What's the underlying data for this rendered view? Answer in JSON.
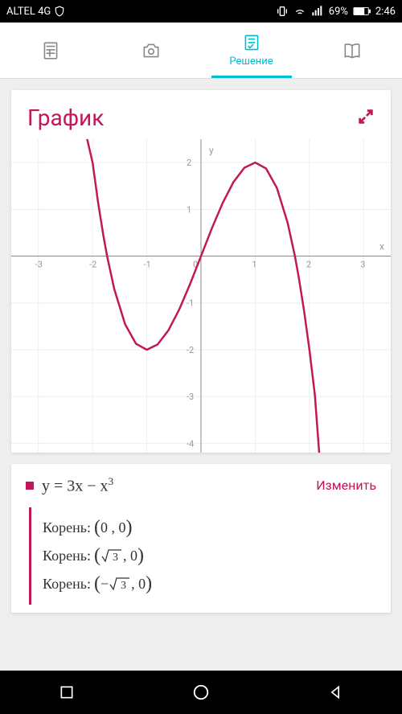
{
  "status": {
    "carrier": "ALTEL 4G",
    "battery": "69%",
    "time": "2:46"
  },
  "tabs": {
    "active_label": "Решение"
  },
  "card": {
    "title": "График"
  },
  "chart": {
    "type": "line",
    "xlim": [
      -3.5,
      3.5
    ],
    "ylim": [
      -4.2,
      2.5
    ],
    "xticks": [
      -3,
      -2,
      -1,
      0,
      1,
      2,
      3
    ],
    "yticks": [
      -4,
      -3,
      -2,
      -1,
      1,
      2
    ],
    "x_axis_label": "x",
    "y_axis_label": "y",
    "curve_color": "#c2185b",
    "curve_width": 2.5,
    "axis_color": "#888888",
    "grid_color": "#eeeeee",
    "background_color": "#ffffff",
    "tick_label_color": "#999999",
    "curve_points": [
      [
        -2.1,
        2.5
      ],
      [
        -2.0,
        2.0
      ],
      [
        -1.9,
        1.159
      ],
      [
        -1.8,
        0.432
      ],
      [
        -1.732,
        0.0
      ],
      [
        -1.6,
        -0.704
      ],
      [
        -1.4,
        -1.456
      ],
      [
        -1.2,
        -1.872
      ],
      [
        -1.0,
        -2.0
      ],
      [
        -0.8,
        -1.888
      ],
      [
        -0.6,
        -1.584
      ],
      [
        -0.4,
        -1.136
      ],
      [
        -0.2,
        -0.592
      ],
      [
        0.0,
        0.0
      ],
      [
        0.2,
        0.592
      ],
      [
        0.4,
        1.136
      ],
      [
        0.6,
        1.584
      ],
      [
        0.8,
        1.888
      ],
      [
        1.0,
        2.0
      ],
      [
        1.2,
        1.872
      ],
      [
        1.4,
        1.456
      ],
      [
        1.6,
        0.704
      ],
      [
        1.732,
        0.0
      ],
      [
        1.8,
        -0.432
      ],
      [
        1.9,
        -1.159
      ],
      [
        2.0,
        -2.0
      ],
      [
        2.1,
        -2.961
      ],
      [
        2.18,
        -4.2
      ]
    ]
  },
  "equation": {
    "display": "y = 3x − x",
    "exponent": "3",
    "edit_label": "Изменить",
    "root_label": "Корень:",
    "roots": [
      {
        "value": "0 , 0",
        "has_sqrt": false
      },
      {
        "value": "3",
        "suffix": " , 0",
        "has_sqrt": true,
        "neg": false
      },
      {
        "value": "3",
        "suffix": " , 0",
        "has_sqrt": true,
        "neg": true
      }
    ]
  }
}
